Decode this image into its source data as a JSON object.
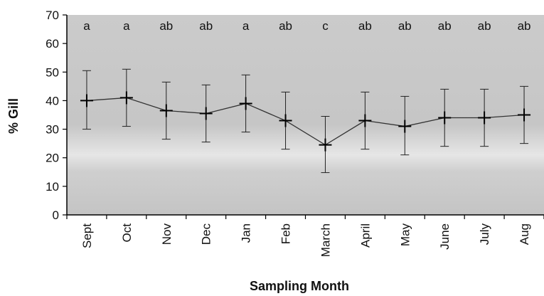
{
  "chart_data": {
    "type": "line",
    "title": "",
    "xlabel": "Sampling Month",
    "ylabel": "% Gill",
    "ylim": [
      0,
      70
    ],
    "yticks": [
      0,
      10,
      20,
      30,
      40,
      50,
      60,
      70
    ],
    "grid": false,
    "legend": "none",
    "categories": [
      "Sept",
      "Oct",
      "Nov",
      "Dec",
      "Jan",
      "Feb",
      "March",
      "April",
      "May",
      "June",
      "July",
      "Aug"
    ],
    "series": [
      {
        "values": [
          40,
          41,
          36.5,
          35.5,
          39,
          33,
          24.5,
          33,
          31,
          34,
          34,
          35
        ],
        "error_lower": [
          30,
          31,
          26.5,
          25.5,
          29,
          23,
          14.8,
          23,
          21,
          24,
          24,
          25
        ],
        "error_upper": [
          50.5,
          51,
          46.5,
          45.5,
          49,
          43,
          34.5,
          43,
          41.5,
          44,
          44,
          45
        ],
        "significance": [
          "a",
          "a",
          "ab",
          "ab",
          "a",
          "ab",
          "c",
          "ab",
          "ab",
          "ab",
          "ab",
          "ab"
        ]
      }
    ],
    "colors": {
      "plot_background": "#c9c9c9",
      "line": "#333333",
      "marker": "#000000",
      "text": "#111111"
    }
  }
}
